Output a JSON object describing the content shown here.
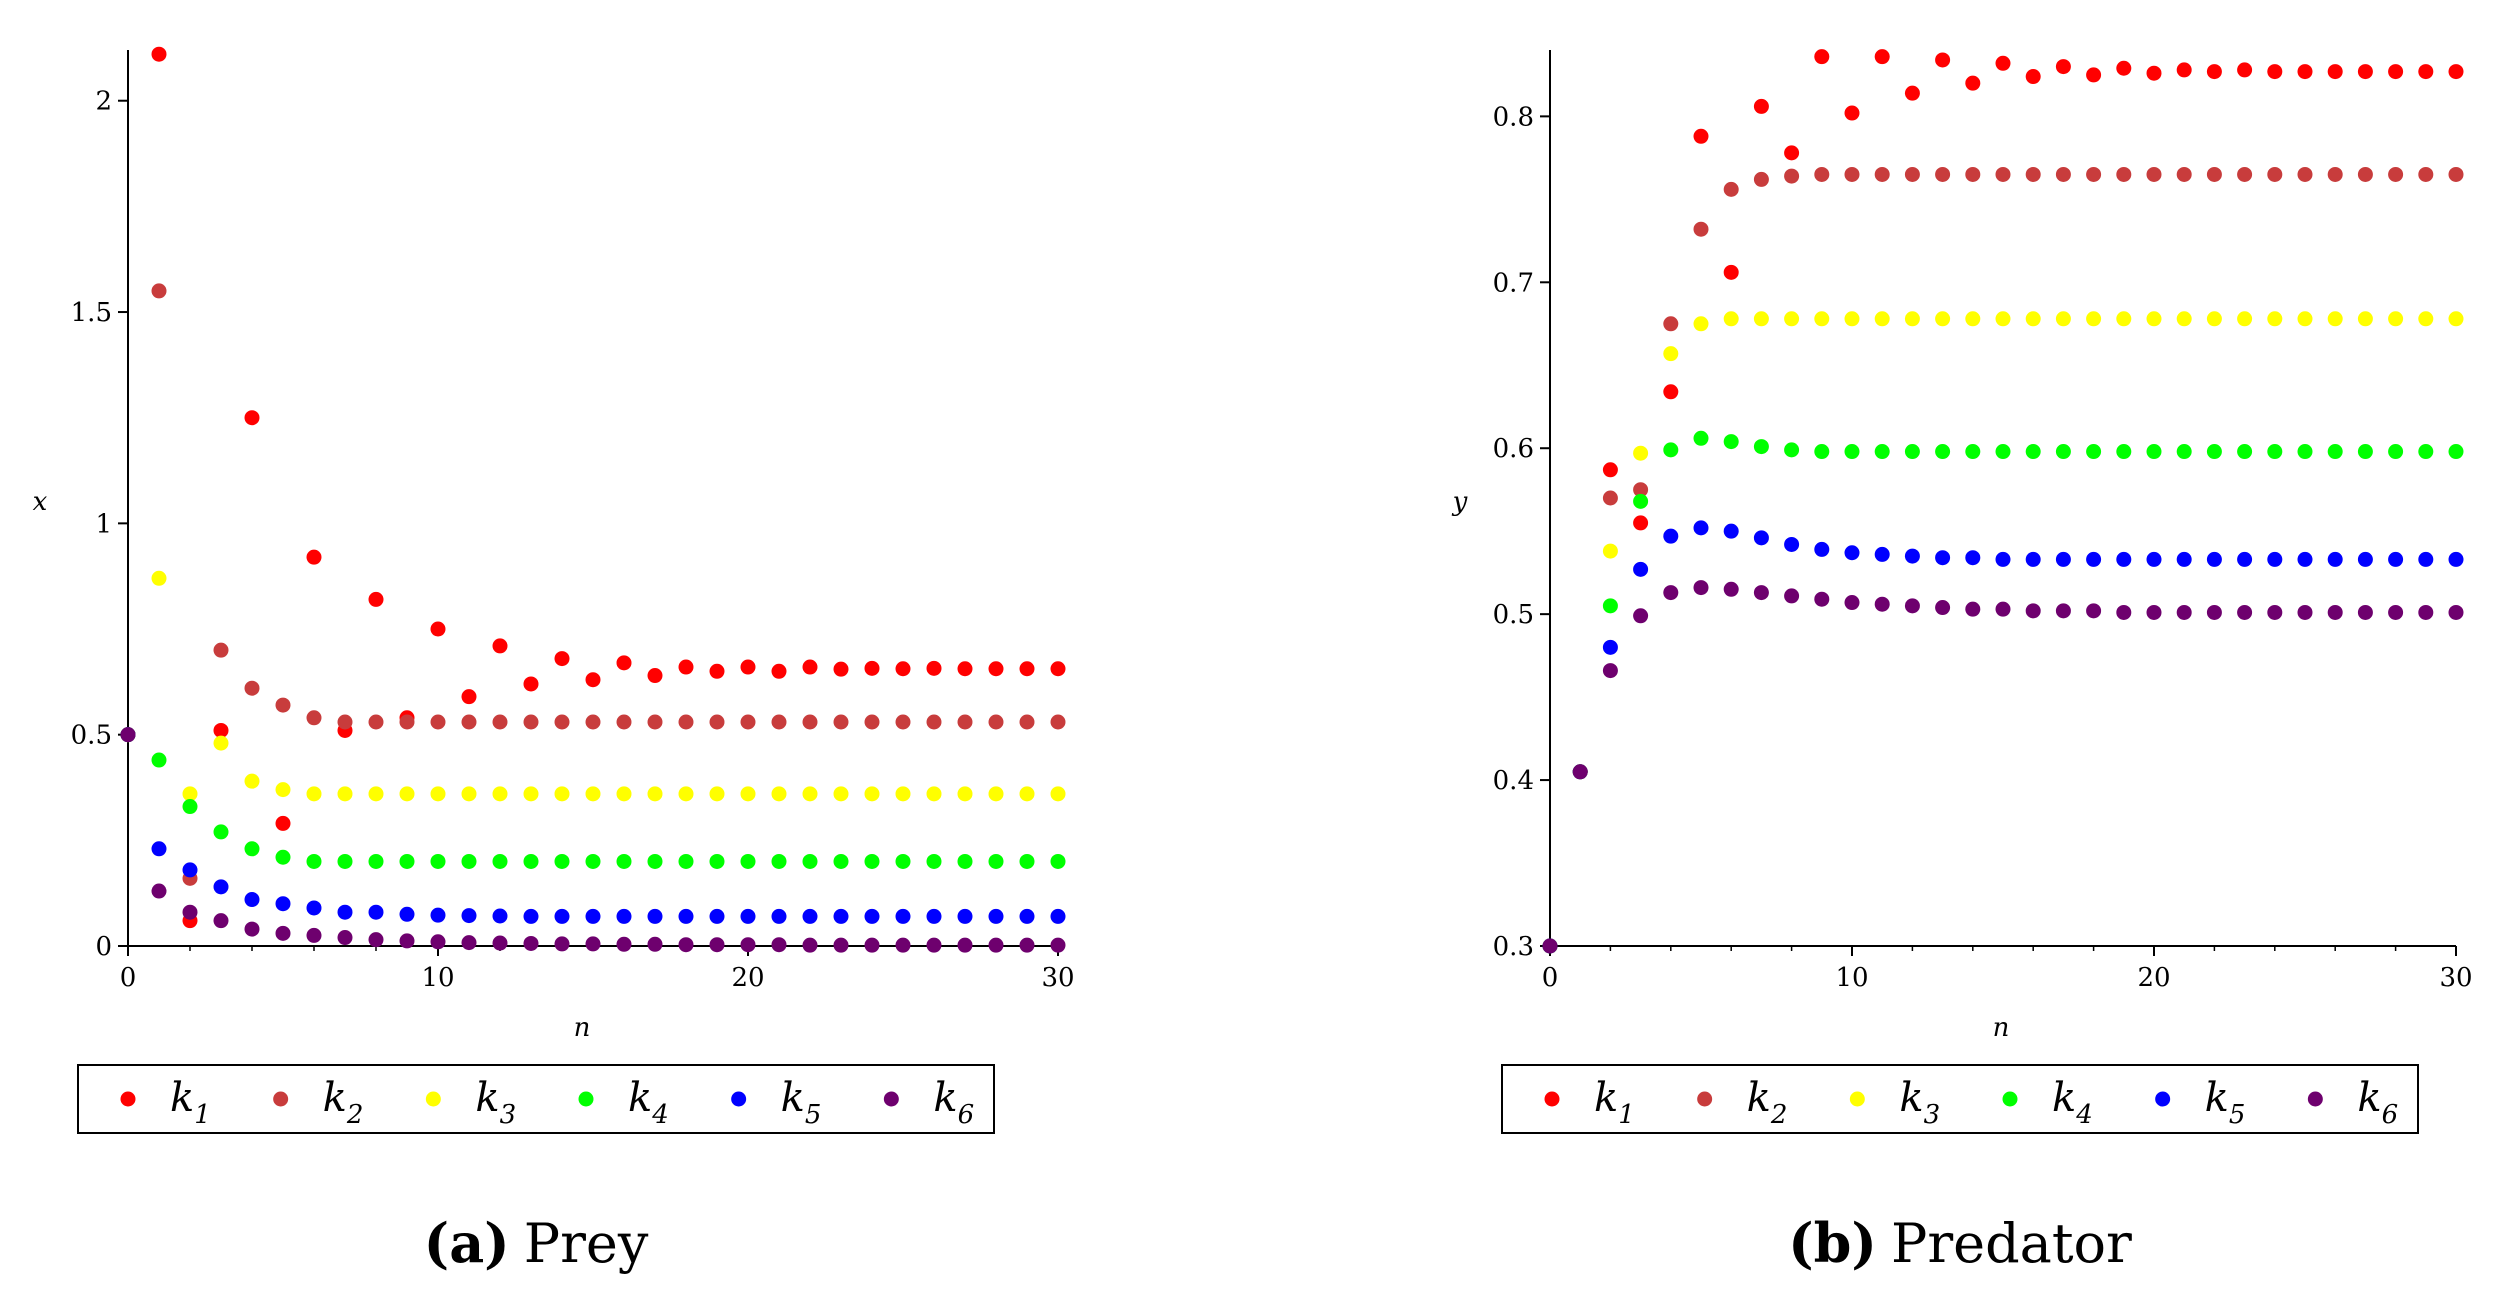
{
  "series_colors": {
    "k1": "#ff0000",
    "k2": "#c83c3c",
    "k3": "#ffff00",
    "k4": "#00ff00",
    "k5": "#0000ff",
    "k6": "#6e006e"
  },
  "chart_data": [
    {
      "type": "scatter",
      "panel": "a",
      "caption_label": "(a)",
      "caption_text": "Prey",
      "title": "",
      "xlabel": "n",
      "ylabel": "x",
      "xlim": [
        0,
        30
      ],
      "ylim": [
        0,
        2.12
      ],
      "xticks": [
        0,
        10,
        20,
        30
      ],
      "yticks": [
        0,
        0.5,
        1,
        1.5,
        2
      ],
      "ytick_labels": [
        "0",
        "0.5",
        "1",
        "1.5",
        "2"
      ],
      "x": [
        0,
        1,
        2,
        3,
        4,
        5,
        6,
        7,
        8,
        9,
        10,
        11,
        12,
        13,
        14,
        15,
        16,
        17,
        18,
        19,
        20,
        21,
        22,
        23,
        24,
        25,
        26,
        27,
        28,
        29,
        30
      ],
      "series": [
        {
          "name": "k",
          "sub": "1",
          "color_key": "k1",
          "values": [
            0.5,
            2.11,
            0.06,
            0.51,
            1.25,
            0.29,
            0.92,
            0.51,
            0.82,
            0.54,
            0.75,
            0.59,
            0.71,
            0.62,
            0.68,
            0.63,
            0.67,
            0.64,
            0.66,
            0.65,
            0.66,
            0.65,
            0.66,
            0.655,
            0.657,
            0.656,
            0.657,
            0.656,
            0.656,
            0.656,
            0.656
          ]
        },
        {
          "name": "k",
          "sub": "2",
          "color_key": "k2",
          "values": [
            0.5,
            1.55,
            0.16,
            0.7,
            0.61,
            0.57,
            0.54,
            0.53,
            0.53,
            0.53,
            0.53,
            0.53,
            0.53,
            0.53,
            0.53,
            0.53,
            0.53,
            0.53,
            0.53,
            0.53,
            0.53,
            0.53,
            0.53,
            0.53,
            0.53,
            0.53,
            0.53,
            0.53,
            0.53,
            0.53,
            0.53
          ]
        },
        {
          "name": "k",
          "sub": "3",
          "color_key": "k3",
          "values": [
            0.5,
            0.87,
            0.36,
            0.48,
            0.39,
            0.37,
            0.36,
            0.36,
            0.36,
            0.36,
            0.36,
            0.36,
            0.36,
            0.36,
            0.36,
            0.36,
            0.36,
            0.36,
            0.36,
            0.36,
            0.36,
            0.36,
            0.36,
            0.36,
            0.36,
            0.36,
            0.36,
            0.36,
            0.36,
            0.36,
            0.36
          ]
        },
        {
          "name": "k",
          "sub": "4",
          "color_key": "k4",
          "values": [
            0.5,
            0.44,
            0.33,
            0.27,
            0.23,
            0.21,
            0.2,
            0.2,
            0.2,
            0.2,
            0.2,
            0.2,
            0.2,
            0.2,
            0.2,
            0.2,
            0.2,
            0.2,
            0.2,
            0.2,
            0.2,
            0.2,
            0.2,
            0.2,
            0.2,
            0.2,
            0.2,
            0.2,
            0.2,
            0.2,
            0.2
          ]
        },
        {
          "name": "k",
          "sub": "5",
          "color_key": "k5",
          "values": [
            0.5,
            0.23,
            0.18,
            0.14,
            0.11,
            0.1,
            0.09,
            0.08,
            0.08,
            0.075,
            0.073,
            0.072,
            0.071,
            0.07,
            0.07,
            0.07,
            0.07,
            0.07,
            0.07,
            0.07,
            0.07,
            0.07,
            0.07,
            0.07,
            0.07,
            0.07,
            0.07,
            0.07,
            0.07,
            0.07,
            0.07
          ]
        },
        {
          "name": "k",
          "sub": "6",
          "color_key": "k6",
          "values": [
            0.5,
            0.13,
            0.08,
            0.06,
            0.04,
            0.03,
            0.025,
            0.02,
            0.015,
            0.012,
            0.01,
            0.008,
            0.007,
            0.006,
            0.005,
            0.005,
            0.004,
            0.004,
            0.003,
            0.003,
            0.003,
            0.003,
            0.002,
            0.002,
            0.002,
            0.002,
            0.002,
            0.002,
            0.002,
            0.002,
            0.002
          ]
        }
      ]
    },
    {
      "type": "scatter",
      "panel": "b",
      "caption_label": "(b)",
      "caption_text": "Predator",
      "title": "",
      "xlabel": "n",
      "ylabel": "y",
      "xlim": [
        0,
        30
      ],
      "ylim": [
        0.3,
        0.84
      ],
      "xticks": [
        0,
        10,
        20,
        30
      ],
      "yticks": [
        0.3,
        0.4,
        0.5,
        0.6,
        0.7,
        0.8
      ],
      "ytick_labels": [
        "0.3",
        "0.4",
        "0.5",
        "0.6",
        "0.7",
        "0.8"
      ],
      "x": [
        0,
        1,
        2,
        3,
        4,
        5,
        6,
        7,
        8,
        9,
        10,
        11,
        12,
        13,
        14,
        15,
        16,
        17,
        18,
        19,
        20,
        21,
        22,
        23,
        24,
        25,
        26,
        27,
        28,
        29,
        30
      ],
      "series": [
        {
          "name": "k",
          "sub": "1",
          "color_key": "k1",
          "values": [
            0.3,
            0.405,
            0.587,
            0.555,
            0.634,
            0.788,
            0.706,
            0.806,
            0.778,
            0.836,
            0.802,
            0.836,
            0.814,
            0.834,
            0.82,
            0.832,
            0.824,
            0.83,
            0.825,
            0.829,
            0.826,
            0.828,
            0.827,
            0.828,
            0.827,
            0.827,
            0.827,
            0.827,
            0.827,
            0.827,
            0.827
          ]
        },
        {
          "name": "k",
          "sub": "2",
          "color_key": "k2",
          "values": [
            0.3,
            0.405,
            0.57,
            0.575,
            0.675,
            0.732,
            0.756,
            0.762,
            0.764,
            0.765,
            0.765,
            0.765,
            0.765,
            0.765,
            0.765,
            0.765,
            0.765,
            0.765,
            0.765,
            0.765,
            0.765,
            0.765,
            0.765,
            0.765,
            0.765,
            0.765,
            0.765,
            0.765,
            0.765,
            0.765,
            0.765
          ]
        },
        {
          "name": "k",
          "sub": "3",
          "color_key": "k3",
          "values": [
            0.3,
            0.405,
            0.538,
            0.597,
            0.657,
            0.675,
            0.678,
            0.678,
            0.678,
            0.678,
            0.678,
            0.678,
            0.678,
            0.678,
            0.678,
            0.678,
            0.678,
            0.678,
            0.678,
            0.678,
            0.678,
            0.678,
            0.678,
            0.678,
            0.678,
            0.678,
            0.678,
            0.678,
            0.678,
            0.678,
            0.678
          ]
        },
        {
          "name": "k",
          "sub": "4",
          "color_key": "k4",
          "values": [
            0.3,
            0.405,
            0.505,
            0.568,
            0.599,
            0.606,
            0.604,
            0.601,
            0.599,
            0.598,
            0.598,
            0.598,
            0.598,
            0.598,
            0.598,
            0.598,
            0.598,
            0.598,
            0.598,
            0.598,
            0.598,
            0.598,
            0.598,
            0.598,
            0.598,
            0.598,
            0.598,
            0.598,
            0.598,
            0.598,
            0.598
          ]
        },
        {
          "name": "k",
          "sub": "5",
          "color_key": "k5",
          "values": [
            0.3,
            0.405,
            0.48,
            0.527,
            0.547,
            0.552,
            0.55,
            0.546,
            0.542,
            0.539,
            0.537,
            0.536,
            0.535,
            0.534,
            0.534,
            0.533,
            0.533,
            0.533,
            0.533,
            0.533,
            0.533,
            0.533,
            0.533,
            0.533,
            0.533,
            0.533,
            0.533,
            0.533,
            0.533,
            0.533,
            0.533
          ]
        },
        {
          "name": "k",
          "sub": "6",
          "color_key": "k6",
          "values": [
            0.3,
            0.405,
            0.466,
            0.499,
            0.513,
            0.516,
            0.515,
            0.513,
            0.511,
            0.509,
            0.507,
            0.506,
            0.505,
            0.504,
            0.503,
            0.503,
            0.502,
            0.502,
            0.502,
            0.501,
            0.501,
            0.501,
            0.501,
            0.501,
            0.501,
            0.501,
            0.501,
            0.501,
            0.501,
            0.501,
            0.501
          ]
        }
      ]
    }
  ]
}
